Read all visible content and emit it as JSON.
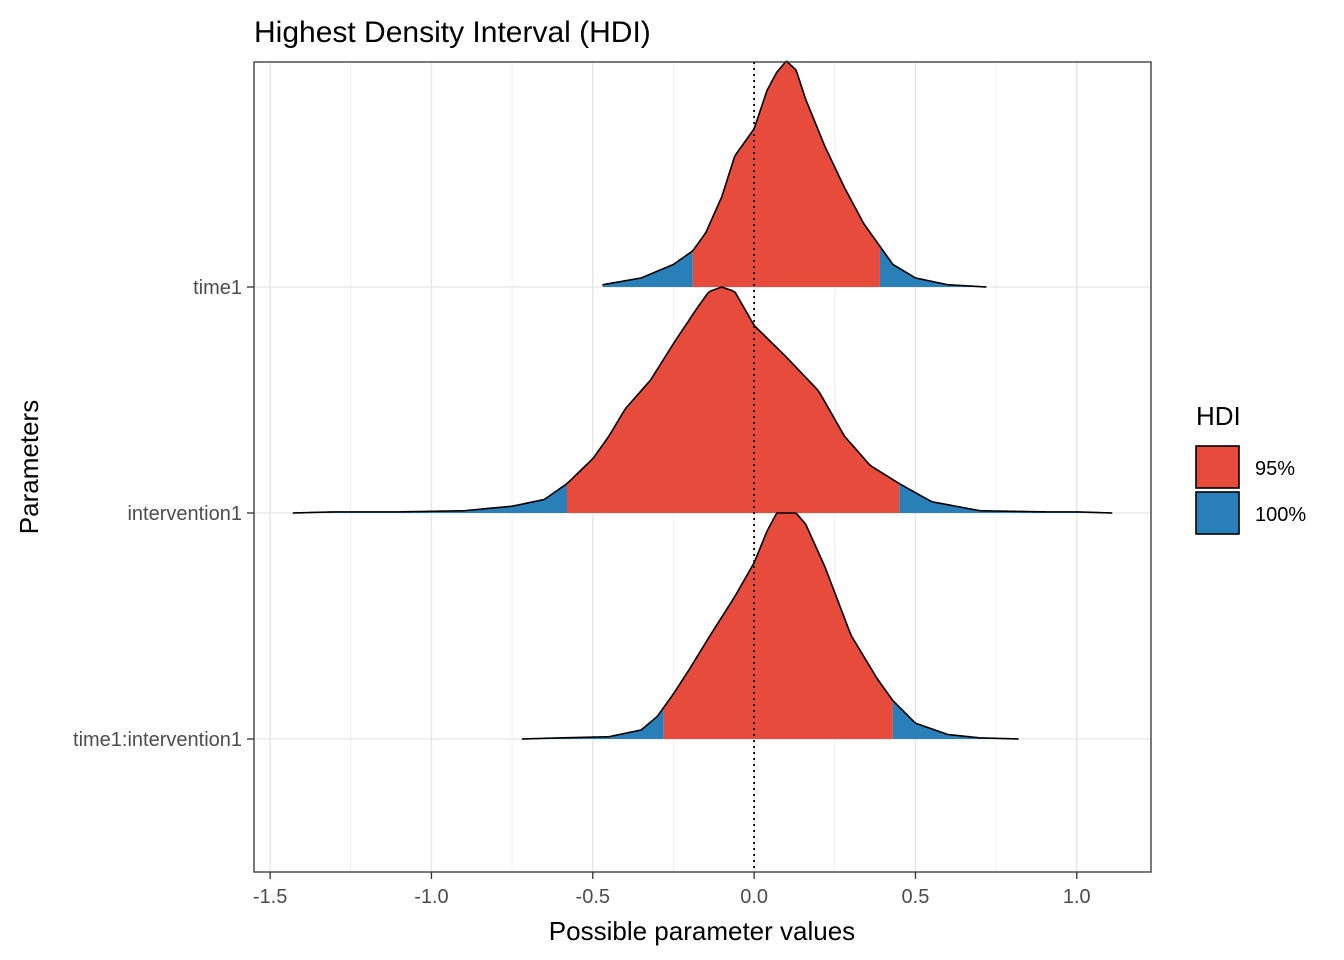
{
  "chart_data": {
    "type": "area",
    "title": "Highest Density Interval (HDI)",
    "xlabel": "Possible parameter values",
    "ylabel": "Parameters",
    "xlim": [
      -1.55,
      1.23
    ],
    "x_ticks": [
      -1.5,
      -1.0,
      -0.5,
      0.0,
      0.5,
      1.0
    ],
    "x_tick_labels": [
      "-1.5",
      "-1.0",
      "-0.5",
      "0.0",
      "0.5",
      "1.0"
    ],
    "reference_line": {
      "x": 0.0,
      "style": "dotted"
    },
    "grid": true,
    "legend": {
      "title": "HDI",
      "position": "right",
      "entries": [
        {
          "label": "95%",
          "color": "#E64B3C"
        },
        {
          "label": "100%",
          "color": "#2980B9"
        }
      ]
    },
    "series": [
      {
        "name": "time1",
        "hdi95": [
          -0.19,
          0.39
        ],
        "range": [
          -0.47,
          0.72
        ],
        "density": [
          [
            -0.47,
            0.01
          ],
          [
            -0.35,
            0.04
          ],
          [
            -0.25,
            0.1
          ],
          [
            -0.19,
            0.16
          ],
          [
            -0.15,
            0.24
          ],
          [
            -0.1,
            0.4
          ],
          [
            -0.06,
            0.58
          ],
          [
            0.0,
            0.7
          ],
          [
            0.04,
            0.87
          ],
          [
            0.07,
            0.95
          ],
          [
            0.1,
            1.0
          ],
          [
            0.13,
            0.96
          ],
          [
            0.16,
            0.83
          ],
          [
            0.22,
            0.62
          ],
          [
            0.28,
            0.44
          ],
          [
            0.34,
            0.28
          ],
          [
            0.39,
            0.18
          ],
          [
            0.43,
            0.1
          ],
          [
            0.5,
            0.04
          ],
          [
            0.6,
            0.01
          ],
          [
            0.72,
            0.0
          ]
        ]
      },
      {
        "name": "intervention1",
        "hdi95": [
          -0.58,
          0.45
        ],
        "range": [
          -1.43,
          1.11
        ],
        "density": [
          [
            -1.43,
            0.0
          ],
          [
            -1.3,
            0.005
          ],
          [
            -1.1,
            0.005
          ],
          [
            -0.9,
            0.01
          ],
          [
            -0.75,
            0.03
          ],
          [
            -0.65,
            0.06
          ],
          [
            -0.58,
            0.13
          ],
          [
            -0.5,
            0.24
          ],
          [
            -0.45,
            0.34
          ],
          [
            -0.4,
            0.46
          ],
          [
            -0.32,
            0.59
          ],
          [
            -0.25,
            0.75
          ],
          [
            -0.18,
            0.9
          ],
          [
            -0.14,
            0.98
          ],
          [
            -0.1,
            1.0
          ],
          [
            -0.06,
            0.98
          ],
          [
            0.0,
            0.83
          ],
          [
            0.1,
            0.69
          ],
          [
            0.2,
            0.54
          ],
          [
            0.28,
            0.34
          ],
          [
            0.36,
            0.21
          ],
          [
            0.45,
            0.13
          ],
          [
            0.55,
            0.05
          ],
          [
            0.7,
            0.01
          ],
          [
            0.9,
            0.005
          ],
          [
            1.0,
            0.005
          ],
          [
            1.11,
            0.0
          ]
        ]
      },
      {
        "name": "time1:intervention1",
        "hdi95": [
          -0.28,
          0.43
        ],
        "range": [
          -0.72,
          0.82
        ],
        "density": [
          [
            -0.72,
            0.0
          ],
          [
            -0.6,
            0.005
          ],
          [
            -0.45,
            0.01
          ],
          [
            -0.35,
            0.04
          ],
          [
            -0.3,
            0.1
          ],
          [
            -0.25,
            0.2
          ],
          [
            -0.2,
            0.31
          ],
          [
            -0.14,
            0.45
          ],
          [
            -0.06,
            0.63
          ],
          [
            0.0,
            0.78
          ],
          [
            0.04,
            0.92
          ],
          [
            0.07,
            1.0
          ],
          [
            0.1,
            1.0
          ],
          [
            0.13,
            1.0
          ],
          [
            0.16,
            0.95
          ],
          [
            0.22,
            0.76
          ],
          [
            0.3,
            0.46
          ],
          [
            0.38,
            0.27
          ],
          [
            0.43,
            0.17
          ],
          [
            0.5,
            0.07
          ],
          [
            0.6,
            0.02
          ],
          [
            0.7,
            0.005
          ],
          [
            0.82,
            0.0
          ]
        ]
      }
    ]
  }
}
